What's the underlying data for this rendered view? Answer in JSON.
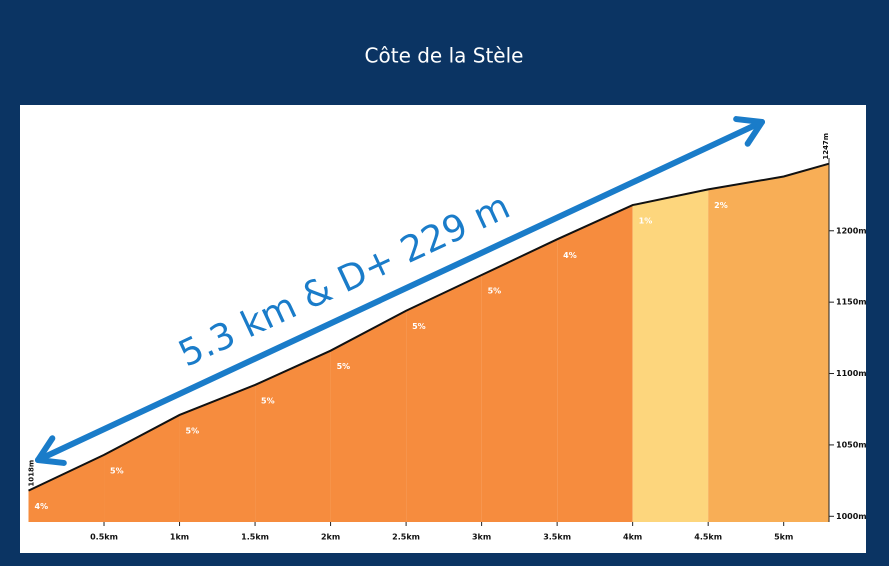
{
  "chart_data": {
    "type": "elevation",
    "title": "Côte de la Stèle",
    "annotation": "5.3 km & D+ 229 m",
    "start_label": "1018m",
    "end_label": "1247m",
    "x": [
      0,
      0.5,
      1,
      1.5,
      2,
      2.5,
      3,
      3.5,
      4,
      4.5,
      5,
      5.3
    ],
    "elevation": [
      1018,
      1043,
      1071,
      1092,
      1116,
      1144,
      1169,
      1194,
      1218,
      1229,
      1238,
      1247
    ],
    "segments": {
      "bounds": [
        0,
        0.5,
        1,
        1.5,
        2,
        2.5,
        3,
        3.5,
        4,
        4.5,
        5.3
      ],
      "values": [
        4,
        5,
        5,
        5,
        5,
        5,
        5,
        4,
        1,
        2
      ],
      "value_labels": [
        "4%",
        "5%",
        "5%",
        "5%",
        "5%",
        "5%",
        "5%",
        "4%",
        "1%",
        "2%"
      ],
      "colors": [
        "#f68c3e",
        "#f68c3e",
        "#f68c3e",
        "#f68c3e",
        "#f68c3e",
        "#f68c3e",
        "#f68c3e",
        "#f68c3e",
        "#fdd67d",
        "#f8ae56"
      ]
    },
    "xlim": [
      0,
      5.3
    ],
    "xticks": [
      {
        "value": 0.5,
        "label": "0.5km"
      },
      {
        "value": 1,
        "label": "1km"
      },
      {
        "value": 1.5,
        "label": "1.5km"
      },
      {
        "value": 2,
        "label": "2km"
      },
      {
        "value": 2.5,
        "label": "2.5km"
      },
      {
        "value": 3,
        "label": "3km"
      },
      {
        "value": 3.5,
        "label": "3.5km"
      },
      {
        "value": 4,
        "label": "4km"
      },
      {
        "value": 4.5,
        "label": "4.5km"
      },
      {
        "value": 5,
        "label": "5km"
      }
    ],
    "ylim": [
      996,
      1286
    ],
    "yticks": [
      {
        "value": 1000,
        "label": "1000m"
      },
      {
        "value": 1050,
        "label": "1050m"
      },
      {
        "value": 1100,
        "label": "1100m"
      },
      {
        "value": 1150,
        "label": "1150m"
      },
      {
        "value": 1200,
        "label": "1200m"
      }
    ],
    "arrow_color": "#1a7cc9"
  }
}
